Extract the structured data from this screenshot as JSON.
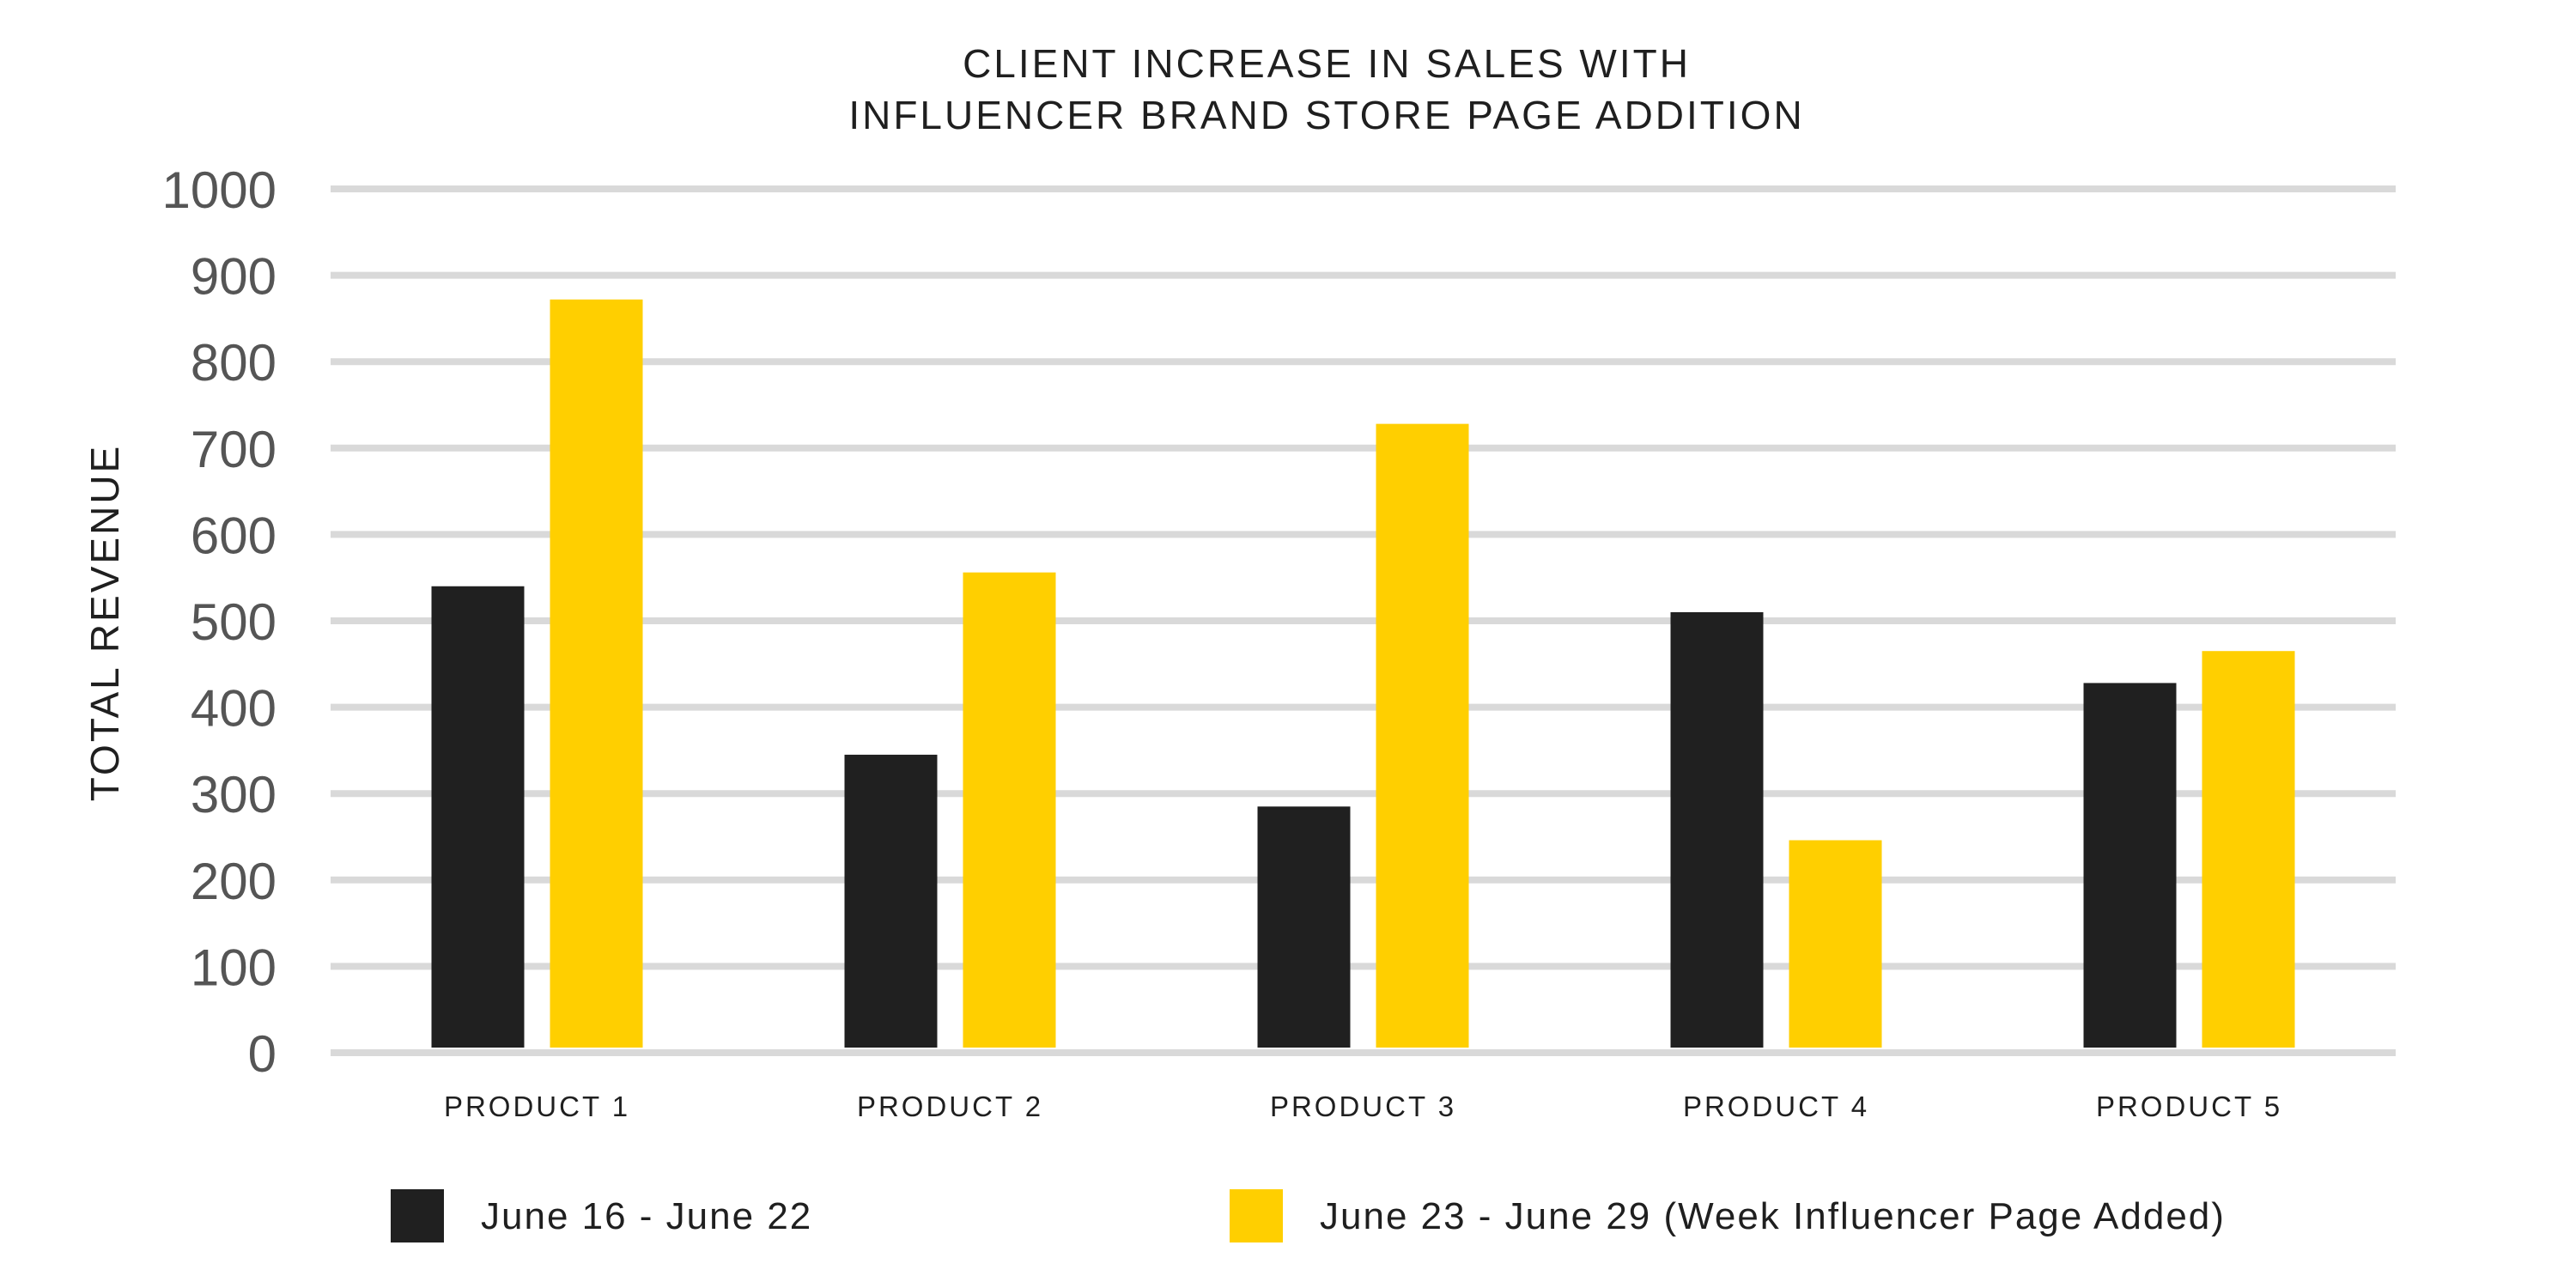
{
  "chart_data": {
    "type": "bar",
    "title": [
      "CLIENT INCREASE IN SALES WITH",
      "INFLUENCER BRAND STORE PAGE ADDITION"
    ],
    "xlabel": "",
    "ylabel": "TOTAL REVENUE",
    "categories": [
      "PRODUCT 1",
      "PRODUCT 2",
      "PRODUCT 3",
      "PRODUCT 4",
      "PRODUCT 5"
    ],
    "ylim": [
      0,
      1000
    ],
    "yticks": [
      0,
      100,
      200,
      300,
      400,
      500,
      600,
      700,
      800,
      900,
      1000
    ],
    "grid": true,
    "legend_position": "bottom",
    "series": [
      {
        "name": "June 16 - June 22",
        "color": "#202020",
        "values": [
          540,
          345,
          285,
          510,
          428
        ]
      },
      {
        "name": "June 23 - June 29 (Week Influencer Page Added)",
        "color": "#ffcf00",
        "values": [
          872,
          556,
          728,
          246,
          465
        ]
      }
    ]
  }
}
